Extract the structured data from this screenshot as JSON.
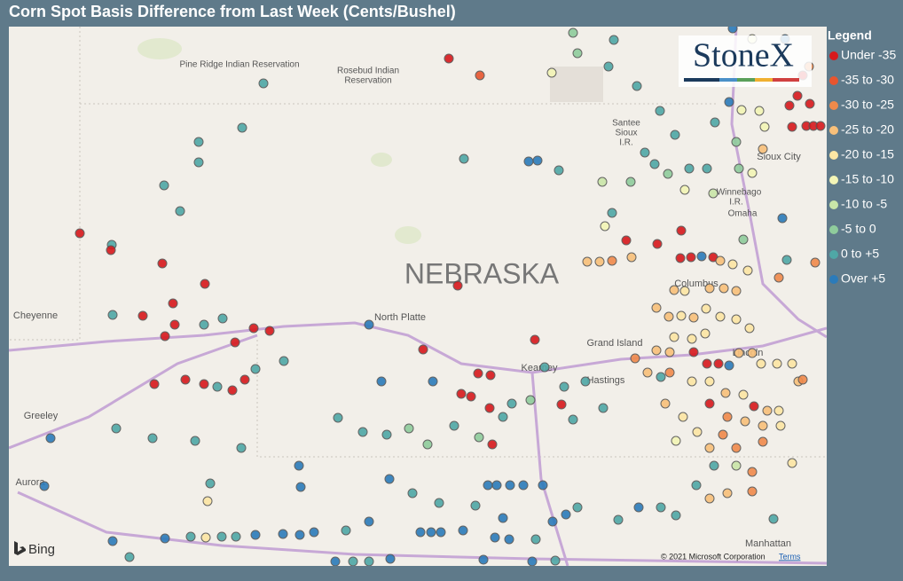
{
  "title": "Corn Spot Basis Difference from Last Week (Cents/Bushel)",
  "logo": "StoneX",
  "legend": {
    "title": "Legend",
    "items": [
      {
        "label": "Under -35",
        "color": "#d7191c"
      },
      {
        "label": "-35 to -30",
        "color": "#e8552f"
      },
      {
        "label": "-30 to -25",
        "color": "#f08a4b"
      },
      {
        "label": "-25 to -20",
        "color": "#f8c07a"
      },
      {
        "label": "-20 to -15",
        "color": "#fce6a4"
      },
      {
        "label": "-15 to -10",
        "color": "#f3f5b6"
      },
      {
        "label": "-10 to -5",
        "color": "#c9e6a8"
      },
      {
        "label": "-5 to 0",
        "color": "#8fcc9c"
      },
      {
        "label": "0 to +5",
        "color": "#4fa7a6"
      },
      {
        "label": "Over +5",
        "color": "#2b7bba"
      }
    ]
  },
  "map_labels": [
    "Pine Ridge Indian Reservation",
    "Rosebud Indian",
    "Reservation",
    "NEBRASKA",
    "Cheyenne",
    "North Platte",
    "Grand Island",
    "Columbus",
    "Kearney",
    "Hastings",
    "Lincoln",
    "Omaha",
    "Sioux City",
    "Winnebago",
    "I.R.",
    "Santee",
    "Sioux",
    "I.R.",
    "Greeley",
    "Aurora",
    "Manhattan"
  ],
  "attribution": {
    "provider": "Bing",
    "copyright": "© 2021 Microsoft Corporation",
    "terms": "Terms"
  }
}
